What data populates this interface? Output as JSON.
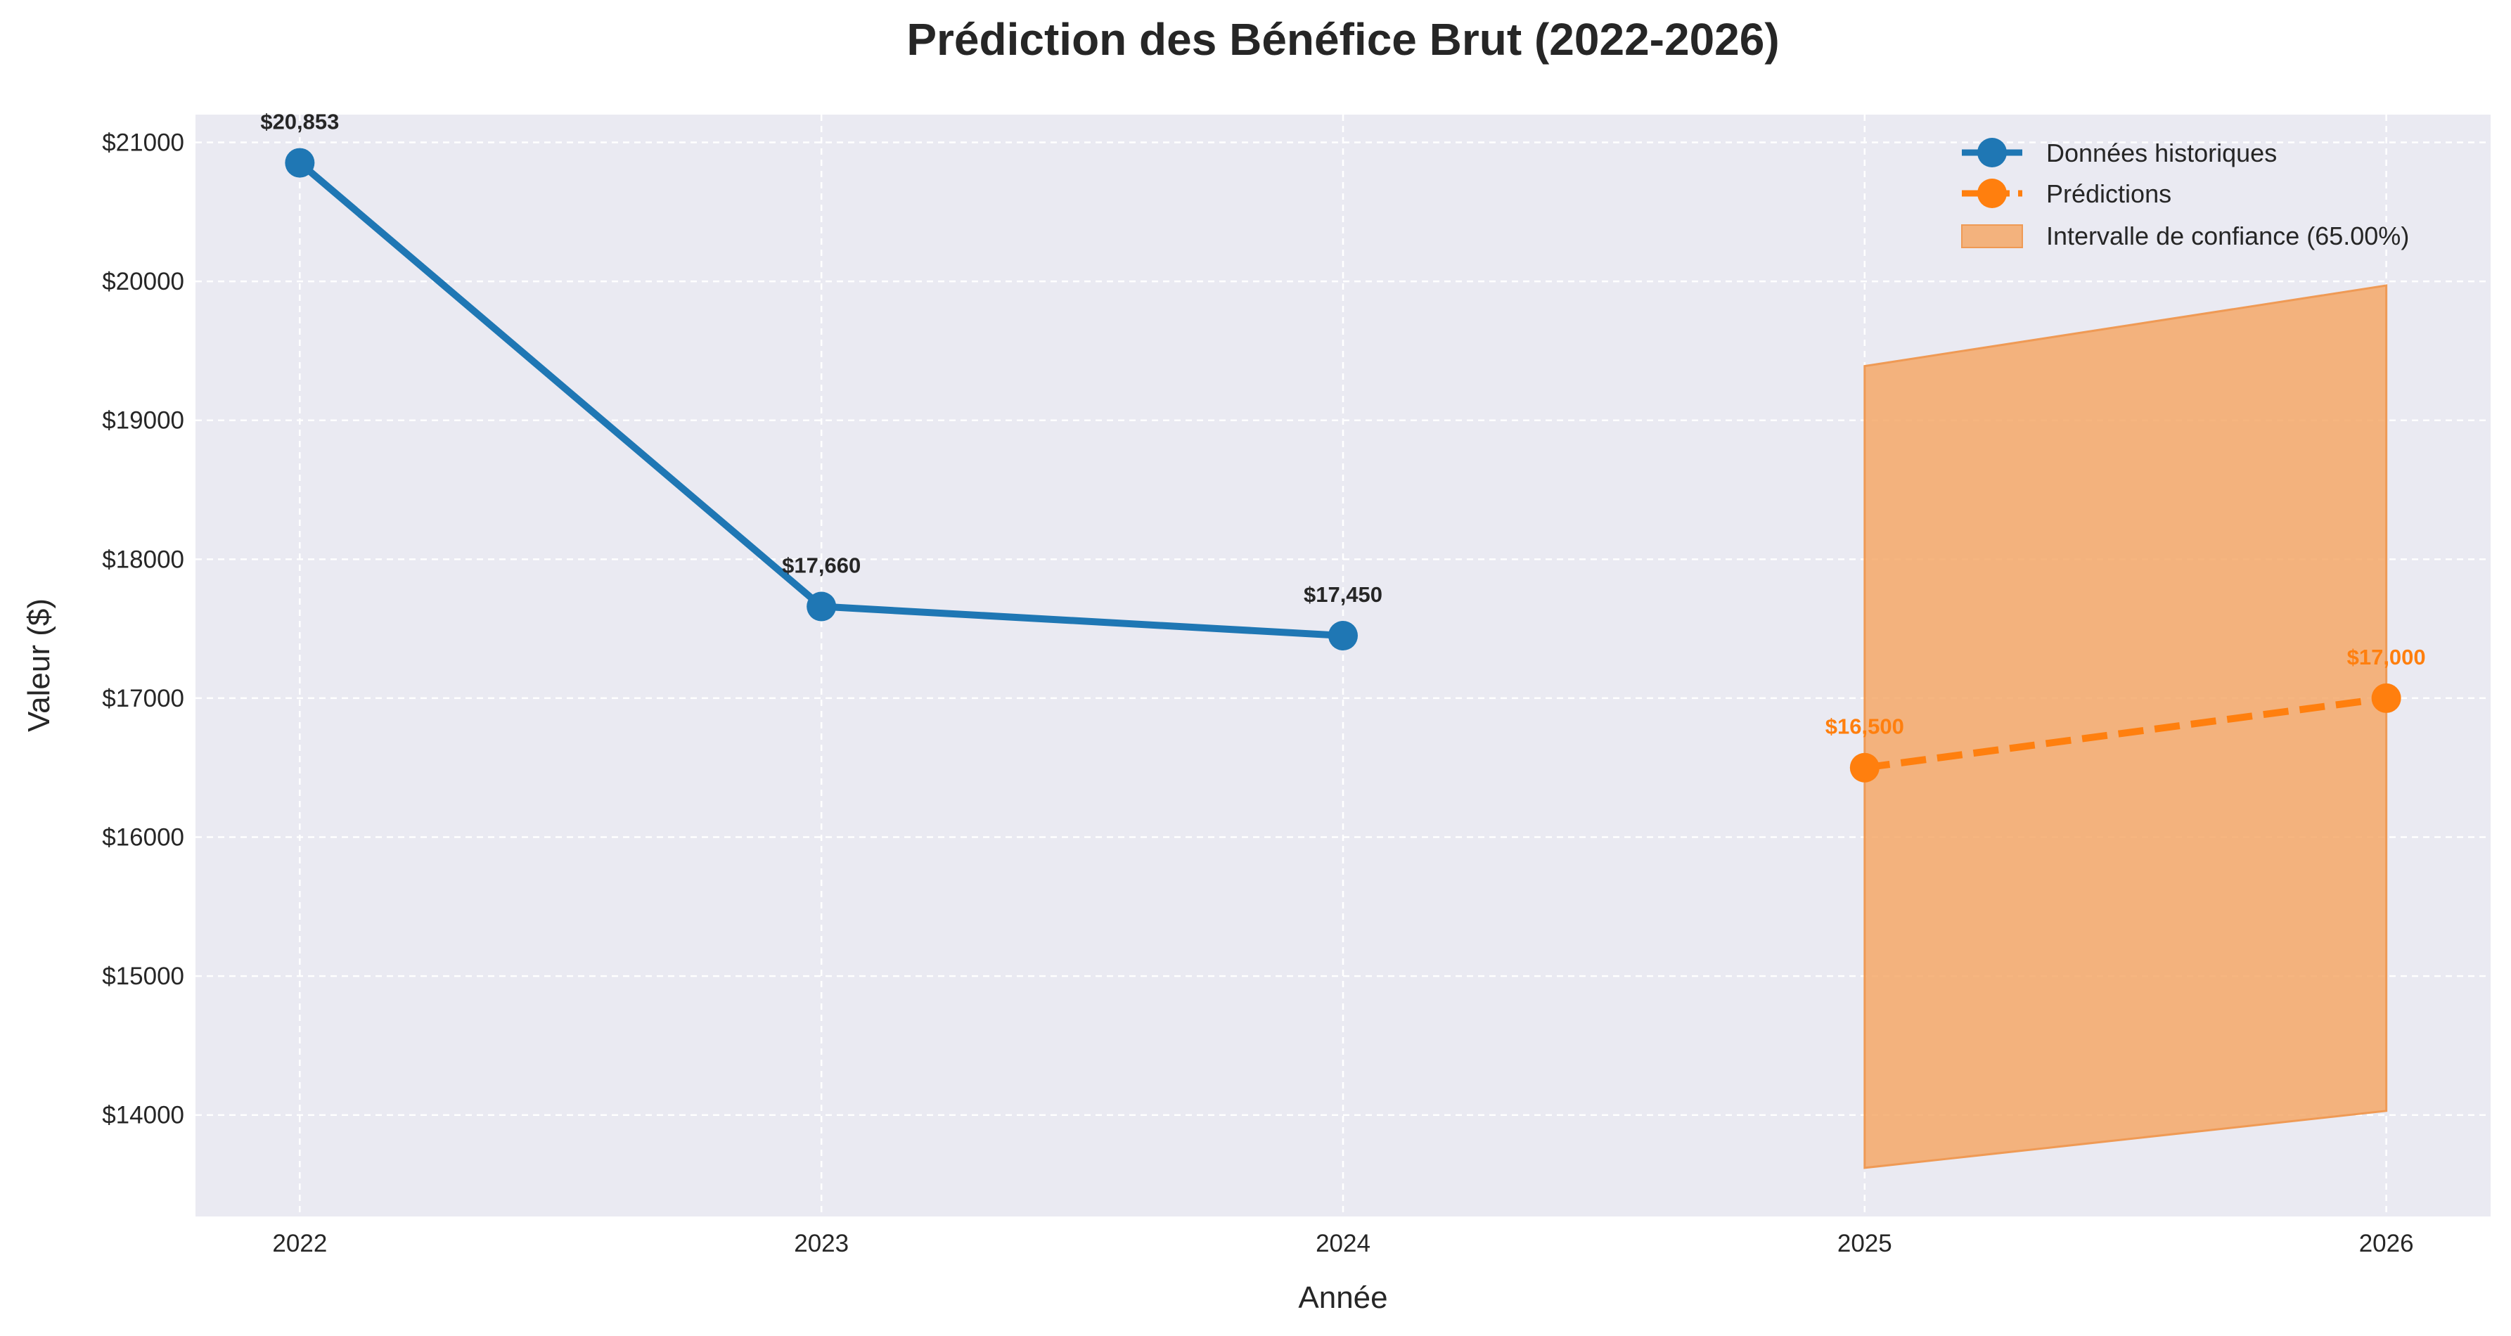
{
  "chart_data": {
    "type": "line",
    "title": "Prédiction des Bénéfice Brut (2022-2026)",
    "xlabel": "Année",
    "ylabel": "Valeur ($)",
    "x": [
      2022,
      2023,
      2024,
      2025,
      2026
    ],
    "x_tick_labels": [
      "2022",
      "2023",
      "2024",
      "2025",
      "2026"
    ],
    "xlim": [
      2021.8,
      2026.2
    ],
    "ylim": [
      13270,
      21200
    ],
    "y_ticks": [
      14000,
      15000,
      16000,
      17000,
      18000,
      19000,
      20000,
      21000
    ],
    "y_tick_labels": [
      "$14000",
      "$15000",
      "$16000",
      "$17000",
      "$18000",
      "$19000",
      "$20000",
      "$21000"
    ],
    "grid": true,
    "legend_position": "top-right",
    "series": [
      {
        "name": "Données historiques",
        "style": "solid-line-markers",
        "color": "#1f77b4",
        "x": [
          2022,
          2023,
          2024
        ],
        "values": [
          20853,
          17660,
          17450
        ],
        "labels": [
          "$20,853",
          "$17,660",
          "$17,450"
        ]
      },
      {
        "name": "Prédictions",
        "style": "dashed-line-markers",
        "color": "#ff7f0e",
        "x": [
          2025,
          2026
        ],
        "values": [
          16500,
          17000
        ],
        "labels": [
          "$16,500",
          "$17,000"
        ]
      }
    ],
    "confidence_band": {
      "name": "Intervalle de confiance (65.00%)",
      "color": "#f5a868",
      "x": [
        2025,
        2026
      ],
      "lower": [
        13620,
        14030
      ],
      "upper": [
        19390,
        19970
      ]
    },
    "colors": {
      "plot_background": "#eaeaf2",
      "grid": "#ffffff",
      "label_text": "#262626"
    }
  }
}
